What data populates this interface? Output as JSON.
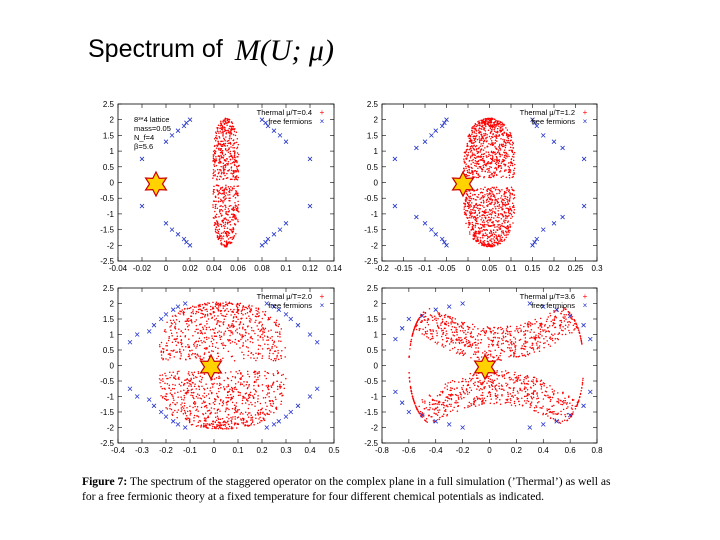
{
  "slide": {
    "title": "Spectrum of",
    "title_math": "M(U; μ)"
  },
  "caption": {
    "label": "Figure 7:",
    "text": " The spectrum of the staggered operator on the complex plane in a full simulation (’Thermal’) as well as for a free fermionic theory at a fixed temperature for four different chemical potentials as indicated."
  },
  "colors": {
    "thermal": "#ff0000",
    "free": "#2233cc",
    "star_fill": "#ffd200",
    "star_stroke": "#cc0000"
  },
  "chart_data": [
    {
      "type": "scatter",
      "xlim": [
        -0.04,
        0.14
      ],
      "ylim": [
        -2.5,
        2.5
      ],
      "xticks": [
        "-0.04",
        "-0.02",
        "0",
        "0.02",
        "0.04",
        "0.06",
        "0.08",
        "0.1",
        "0.12",
        "0.14"
      ],
      "yticks": [
        "2.5",
        "2",
        "1.5",
        "1",
        "0.5",
        "0",
        "-0.5",
        "-1",
        "-1.5",
        "-2",
        "-2.5"
      ],
      "info_lines": [
        "8³*4 lattice",
        "mass=0.05",
        "N_f=4",
        "β=5.6"
      ],
      "series": [
        {
          "name": "Thermal μ/T=0.4",
          "thermal_bounds": {
            "xmin": 0.039,
            "xmax": 0.061,
            "ymin": -2.05,
            "ymax": 2.05,
            "gap": 0.16
          }
        },
        {
          "name": "free fermions",
          "points": [
            [
              -0.02,
              0.75
            ],
            [
              -0.02,
              -0.75
            ],
            [
              0.0,
              1.3
            ],
            [
              0.0,
              -1.3
            ],
            [
              0.005,
              1.5
            ],
            [
              0.005,
              -1.5
            ],
            [
              0.01,
              1.65
            ],
            [
              0.01,
              -1.65
            ],
            [
              0.015,
              1.8
            ],
            [
              0.015,
              -1.8
            ],
            [
              0.017,
              1.9
            ],
            [
              0.017,
              -1.9
            ],
            [
              0.02,
              2.0
            ],
            [
              0.02,
              -2.0
            ],
            [
              0.08,
              2.0
            ],
            [
              0.08,
              -2.0
            ],
            [
              0.083,
              1.9
            ],
            [
              0.083,
              -1.9
            ],
            [
              0.085,
              1.8
            ],
            [
              0.085,
              -1.8
            ],
            [
              0.09,
              1.65
            ],
            [
              0.09,
              -1.65
            ],
            [
              0.095,
              1.5
            ],
            [
              0.095,
              -1.5
            ],
            [
              0.1,
              1.3
            ],
            [
              0.1,
              -1.3
            ],
            [
              0.12,
              0.75
            ],
            [
              0.12,
              -0.75
            ]
          ]
        }
      ]
    },
    {
      "type": "scatter",
      "xlim": [
        -0.2,
        0.3
      ],
      "ylim": [
        -2.5,
        2.5
      ],
      "xticks": [
        "-0.2",
        "-0.15",
        "-0.1",
        "-0.05",
        "0",
        "0.05",
        "0.1",
        "0.15",
        "0.2",
        "0.25",
        "0.3"
      ],
      "yticks": [
        "2.5",
        "2",
        "1.5",
        "1",
        "0.5",
        "0",
        "-0.5",
        "-1",
        "-1.5",
        "-2",
        "-2.5"
      ],
      "info_lines": [],
      "series": [
        {
          "name": "Thermal μ/T=1.2",
          "thermal_bounds": {
            "xmin": -0.01,
            "xmax": 0.11,
            "ymin": -2.05,
            "ymax": 2.05,
            "gap": 0.3
          }
        },
        {
          "name": "free fermions",
          "points": [
            [
              -0.17,
              0.75
            ],
            [
              -0.17,
              -0.75
            ],
            [
              -0.12,
              1.1
            ],
            [
              -0.12,
              -1.1
            ],
            [
              -0.1,
              1.3
            ],
            [
              -0.1,
              -1.3
            ],
            [
              -0.085,
              1.5
            ],
            [
              -0.085,
              -1.5
            ],
            [
              -0.075,
              1.65
            ],
            [
              -0.075,
              -1.65
            ],
            [
              -0.06,
              1.8
            ],
            [
              -0.06,
              -1.8
            ],
            [
              -0.055,
              1.9
            ],
            [
              -0.055,
              -1.9
            ],
            [
              -0.05,
              2.0
            ],
            [
              -0.05,
              -2.0
            ],
            [
              0.15,
              2.0
            ],
            [
              0.15,
              -2.0
            ],
            [
              0.155,
              1.9
            ],
            [
              0.155,
              -1.9
            ],
            [
              0.16,
              1.8
            ],
            [
              0.16,
              -1.8
            ],
            [
              0.175,
              1.5
            ],
            [
              0.175,
              -1.5
            ],
            [
              0.2,
              1.3
            ],
            [
              0.2,
              -1.3
            ],
            [
              0.22,
              1.1
            ],
            [
              0.22,
              -1.1
            ],
            [
              0.27,
              0.75
            ],
            [
              0.27,
              -0.75
            ]
          ]
        }
      ]
    },
    {
      "type": "scatter",
      "xlim": [
        -0.4,
        0.5
      ],
      "ylim": [
        -2.5,
        2.5
      ],
      "xticks": [
        "-0.4",
        "-0.3",
        "-0.2",
        "-0.1",
        "0",
        "0.1",
        "0.2",
        "0.3",
        "0.4",
        "0.5"
      ],
      "yticks": [
        "2.5",
        "2",
        "1.5",
        "1",
        "0.5",
        "0",
        "-0.5",
        "-1",
        "-1.5",
        "-2",
        "-2.5"
      ],
      "info_lines": [],
      "series": [
        {
          "name": "Thermal μ/T=2.0",
          "thermal_bounds": {
            "xmin": -0.23,
            "xmax": 0.3,
            "ymin": -2.05,
            "ymax": 2.05,
            "gap": 0.3
          }
        },
        {
          "name": "free fermions",
          "points": [
            [
              -0.35,
              0.75
            ],
            [
              -0.35,
              -0.75
            ],
            [
              -0.32,
              1.0
            ],
            [
              -0.32,
              -1.0
            ],
            [
              -0.27,
              1.1
            ],
            [
              -0.27,
              -1.1
            ],
            [
              -0.25,
              1.3
            ],
            [
              -0.25,
              -1.3
            ],
            [
              -0.22,
              1.5
            ],
            [
              -0.22,
              -1.5
            ],
            [
              -0.2,
              1.65
            ],
            [
              -0.2,
              -1.65
            ],
            [
              -0.17,
              1.8
            ],
            [
              -0.17,
              -1.8
            ],
            [
              -0.15,
              1.9
            ],
            [
              -0.15,
              -1.9
            ],
            [
              -0.12,
              2.0
            ],
            [
              -0.12,
              -2.0
            ],
            [
              0.22,
              2.0
            ],
            [
              0.22,
              -2.0
            ],
            [
              0.25,
              1.9
            ],
            [
              0.25,
              -1.9
            ],
            [
              0.27,
              1.8
            ],
            [
              0.27,
              -1.8
            ],
            [
              0.3,
              1.65
            ],
            [
              0.3,
              -1.65
            ],
            [
              0.32,
              1.5
            ],
            [
              0.32,
              -1.5
            ],
            [
              0.35,
              1.3
            ],
            [
              0.35,
              -1.3
            ],
            [
              0.4,
              1.0
            ],
            [
              0.4,
              -1.0
            ],
            [
              0.43,
              0.75
            ],
            [
              0.43,
              -0.75
            ]
          ]
        }
      ]
    },
    {
      "type": "scatter",
      "xlim": [
        -0.8,
        0.8
      ],
      "ylim": [
        -2.5,
        2.5
      ],
      "xticks": [
        "-0.8",
        "-0.6",
        "-0.4",
        "-0.2",
        "0",
        "0.2",
        "0.4",
        "0.6",
        "0.8"
      ],
      "yticks": [
        "2.5",
        "2",
        "1.5",
        "1",
        "0.5",
        "0",
        "-0.5",
        "-1",
        "-1.5",
        "-2",
        "-2.5"
      ],
      "info_lines": [],
      "series": [
        {
          "name": "Thermal μ/T=3.6",
          "thermal_bounds": {
            "xmin": -0.6,
            "xmax": 0.7,
            "ymin": -2.1,
            "ymax": 2.1,
            "gap": 0.3
          }
        },
        {
          "name": "free fermions",
          "points": [
            [
              -0.65,
              1.2
            ],
            [
              -0.65,
              -1.2
            ],
            [
              -0.6,
              1.5
            ],
            [
              -0.6,
              -1.5
            ],
            [
              -0.5,
              1.6
            ],
            [
              -0.5,
              -1.6
            ],
            [
              -0.4,
              1.8
            ],
            [
              -0.4,
              -1.8
            ],
            [
              -0.3,
              1.9
            ],
            [
              -0.3,
              -1.9
            ],
            [
              -0.2,
              2.0
            ],
            [
              -0.2,
              -2.0
            ],
            [
              0.3,
              2.0
            ],
            [
              0.3,
              -2.0
            ],
            [
              0.4,
              1.9
            ],
            [
              0.4,
              -1.9
            ],
            [
              0.5,
              1.8
            ],
            [
              0.5,
              -1.8
            ],
            [
              0.6,
              1.6
            ],
            [
              0.6,
              -1.6
            ],
            [
              0.7,
              1.3
            ],
            [
              0.7,
              -1.3
            ],
            [
              0.75,
              0.85
            ],
            [
              0.75,
              -0.85
            ],
            [
              -0.7,
              0.85
            ],
            [
              -0.7,
              -0.85
            ]
          ]
        }
      ]
    }
  ]
}
